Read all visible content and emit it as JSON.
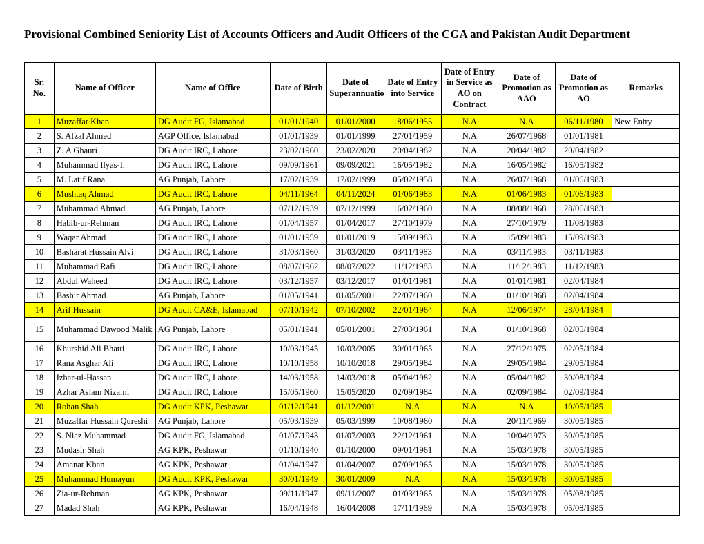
{
  "title": "Provisional Combined Seniority List of Accounts Officers and Audit Officers of the CGA and Pakistan Audit Department",
  "headers": {
    "sr": "Sr. No.",
    "name": "Name of Officer",
    "office": "Name of Office",
    "dob": "Date of Birth",
    "super": "Date of Superannuation",
    "entry": "Date of Entry into Service",
    "contract": "Date of Entry in Service as AO on Contract",
    "promo_aao": "Date of Promotion as AAO",
    "promo_ao": "Date of Promotion as AO",
    "remarks": "Remarks"
  },
  "rows": [
    {
      "sr": "1",
      "name": "Muzaffar Khan",
      "office": "DG Audit FG, Islamabad",
      "dob": "01/01/1940",
      "super": "01/01/2000",
      "entry": "18/06/1955",
      "contract": "N.A",
      "aao": "N.A",
      "ao": "06/11/1980",
      "remarks": "New Entry",
      "hl": true
    },
    {
      "sr": "2",
      "name": "S. Afzal Ahmed",
      "office": "AGP Office, Islamabad",
      "dob": "01/01/1939",
      "super": "01/01/1999",
      "entry": "27/01/1959",
      "contract": "N.A",
      "aao": "26/07/1968",
      "ao": "01/01/1981",
      "remarks": ""
    },
    {
      "sr": "3",
      "name": "Z. A Ghauri",
      "office": "DG Audit IRC, Lahore",
      "dob": "23/02/1960",
      "super": "23/02/2020",
      "entry": "20/04/1982",
      "contract": "N.A",
      "aao": "20/04/1982",
      "ao": "20/04/1982",
      "remarks": ""
    },
    {
      "sr": "4",
      "name": "Muhammad Ilyas-I.",
      "office": "DG Audit IRC, Lahore",
      "dob": "09/09/1961",
      "super": "09/09/2021",
      "entry": "16/05/1982",
      "contract": "N.A",
      "aao": "16/05/1982",
      "ao": "16/05/1982",
      "remarks": ""
    },
    {
      "sr": "5",
      "name": "M. Latif Rana",
      "office": "AG Punjab, Lahore",
      "dob": "17/02/1939",
      "super": "17/02/1999",
      "entry": "05/02/1958",
      "contract": "N.A",
      "aao": "26/07/1968",
      "ao": "01/06/1983",
      "remarks": ""
    },
    {
      "sr": "6",
      "name": "Mushtaq Ahmad",
      "office": "DG Audit IRC, Lahore",
      "dob": "04/11/1964",
      "super": "04/11/2024",
      "entry": "01/06/1983",
      "contract": "N.A",
      "aao": "01/06/1983",
      "ao": "01/06/1983",
      "remarks": "",
      "hl": true
    },
    {
      "sr": "7",
      "name": "Muhammad Ahmad",
      "office": "AG Punjab, Lahore",
      "dob": "07/12/1939",
      "super": "07/12/1999",
      "entry": "16/02/1960",
      "contract": "N.A",
      "aao": "08/08/1968",
      "ao": "28/06/1983",
      "remarks": ""
    },
    {
      "sr": "8",
      "name": "Habib-ur-Rehman",
      "office": "DG Audit IRC, Lahore",
      "dob": "01/04/1957",
      "super": "01/04/2017",
      "entry": "27/10/1979",
      "contract": "N.A",
      "aao": "27/10/1979",
      "ao": "11/08/1983",
      "remarks": ""
    },
    {
      "sr": "9",
      "name": "Waqar Ahmad",
      "office": "DG Audit IRC, Lahore",
      "dob": "01/01/1959",
      "super": "01/01/2019",
      "entry": "15/09/1983",
      "contract": "N.A",
      "aao": "15/09/1983",
      "ao": "15/09/1983",
      "remarks": ""
    },
    {
      "sr": "10",
      "name": "Basharat Hussain Alvi",
      "office": "DG Audit IRC, Lahore",
      "dob": "31/03/1960",
      "super": "31/03/2020",
      "entry": "03/11/1983",
      "contract": "N.A",
      "aao": "03/11/1983",
      "ao": "03/11/1983",
      "remarks": ""
    },
    {
      "sr": "11",
      "name": "Muhammad Rafi",
      "office": "DG Audit IRC, Lahore",
      "dob": "08/07/1962",
      "super": "08/07/2022",
      "entry": "11/12/1983",
      "contract": "N.A",
      "aao": "11/12/1983",
      "ao": "11/12/1983",
      "remarks": ""
    },
    {
      "sr": "12",
      "name": "Abdul Waheed",
      "office": "DG Audit IRC, Lahore",
      "dob": "03/12/1957",
      "super": "03/12/2017",
      "entry": "01/01/1981",
      "contract": "N.A",
      "aao": "01/01/1981",
      "ao": "02/04/1984",
      "remarks": ""
    },
    {
      "sr": "13",
      "name": "Bashir Ahmad",
      "office": "AG Punjab, Lahore",
      "dob": "01/05/1941",
      "super": "01/05/2001",
      "entry": "22/07/1960",
      "contract": "N.A",
      "aao": "01/10/1968",
      "ao": "02/04/1984",
      "remarks": ""
    },
    {
      "sr": "14",
      "name": "Arif Hussain",
      "office": "DG Audit CA&E, Islamabad",
      "dob": "07/10/1942",
      "super": "07/10/2002",
      "entry": "22/01/1964",
      "contract": "N.A",
      "aao": "12/06/1974",
      "ao": "28/04/1984",
      "remarks": "",
      "hl": true
    },
    {
      "sr": "15",
      "name": "Muhammad Dawood Malik",
      "office": "AG Punjab, Lahore",
      "dob": "05/01/1941",
      "super": "05/01/2001",
      "entry": "27/03/1961",
      "contract": "N.A",
      "aao": "01/10/1968",
      "ao": "02/05/1984",
      "remarks": "",
      "tall": true
    },
    {
      "sr": "16",
      "name": "Khurshid Ali Bhatti",
      "office": "DG Audit IRC, Lahore",
      "dob": "10/03/1945",
      "super": "10/03/2005",
      "entry": "30/01/1965",
      "contract": "N.A",
      "aao": "27/12/1975",
      "ao": "02/05/1984",
      "remarks": ""
    },
    {
      "sr": "17",
      "name": "Rana Asghar Ali",
      "office": "DG Audit IRC, Lahore",
      "dob": "10/10/1958",
      "super": "10/10/2018",
      "entry": "29/05/1984",
      "contract": "N.A",
      "aao": "29/05/1984",
      "ao": "29/05/1984",
      "remarks": ""
    },
    {
      "sr": "18",
      "name": "Izhar-ul-Hassan",
      "office": "DG Audit IRC, Lahore",
      "dob": "14/03/1958",
      "super": "14/03/2018",
      "entry": "05/04/1982",
      "contract": "N.A",
      "aao": "05/04/1982",
      "ao": "30/08/1984",
      "remarks": ""
    },
    {
      "sr": "19",
      "name": "Azhar Aslam Nizami",
      "office": "DG Audit IRC, Lahore",
      "dob": "15/05/1960",
      "super": "15/05/2020",
      "entry": "02/09/1984",
      "contract": "N.A",
      "aao": "02/09/1984",
      "ao": "02/09/1984",
      "remarks": ""
    },
    {
      "sr": "20",
      "name": "Rohan Shah",
      "office": "DG Audit KPK, Peshawar",
      "dob": "01/12/1941",
      "super": "01/12/2001",
      "entry": "N.A",
      "contract": "N.A",
      "aao": "N.A",
      "ao": "10/05/1985",
      "remarks": "",
      "hl": true
    },
    {
      "sr": "21",
      "name": "Muzaffar Hussain Qureshi",
      "office": "AG Punjab, Lahore",
      "dob": "05/03/1939",
      "super": "05/03/1999",
      "entry": "10/08/1960",
      "contract": "N.A",
      "aao": "20/11/1969",
      "ao": "30/05/1985",
      "remarks": ""
    },
    {
      "sr": "22",
      "name": "S. Niaz Muhammad",
      "office": "DG Audit FG, Islamabad",
      "dob": "01/07/1943",
      "super": "01/07/2003",
      "entry": "22/12/1961",
      "contract": "N.A",
      "aao": "10/04/1973",
      "ao": "30/05/1985",
      "remarks": ""
    },
    {
      "sr": "23",
      "name": "Mudasir Shah",
      "office": "AG KPK, Peshawar",
      "dob": "01/10/1940",
      "super": "01/10/2000",
      "entry": "09/01/1961",
      "contract": "N.A",
      "aao": "15/03/1978",
      "ao": "30/05/1985",
      "remarks": ""
    },
    {
      "sr": "24",
      "name": "Amanat Khan",
      "office": "AG KPK, Peshawar",
      "dob": "01/04/1947",
      "super": "01/04/2007",
      "entry": "07/09/1965",
      "contract": "N.A",
      "aao": "15/03/1978",
      "ao": "30/05/1985",
      "remarks": ""
    },
    {
      "sr": "25",
      "name": "Muhammad Humayun",
      "office": "DG Audit KPK, Peshawar",
      "dob": "30/01/1949",
      "super": "30/01/2009",
      "entry": "N.A",
      "contract": "N.A",
      "aao": "15/03/1978",
      "ao": "30/05/1985",
      "remarks": "",
      "hl": true
    },
    {
      "sr": "26",
      "name": "Zia-ur-Rehman",
      "office": "AG KPK, Peshawar",
      "dob": "09/11/1947",
      "super": "09/11/2007",
      "entry": "01/03/1965",
      "contract": "N.A",
      "aao": "15/03/1978",
      "ao": "05/08/1985",
      "remarks": ""
    },
    {
      "sr": "27",
      "name": "Madad Shah",
      "office": "AG KPK, Peshawar",
      "dob": "16/04/1948",
      "super": "16/04/2008",
      "entry": "17/11/1969",
      "contract": "N.A",
      "aao": "15/03/1978",
      "ao": "05/08/1985",
      "remarks": ""
    }
  ]
}
